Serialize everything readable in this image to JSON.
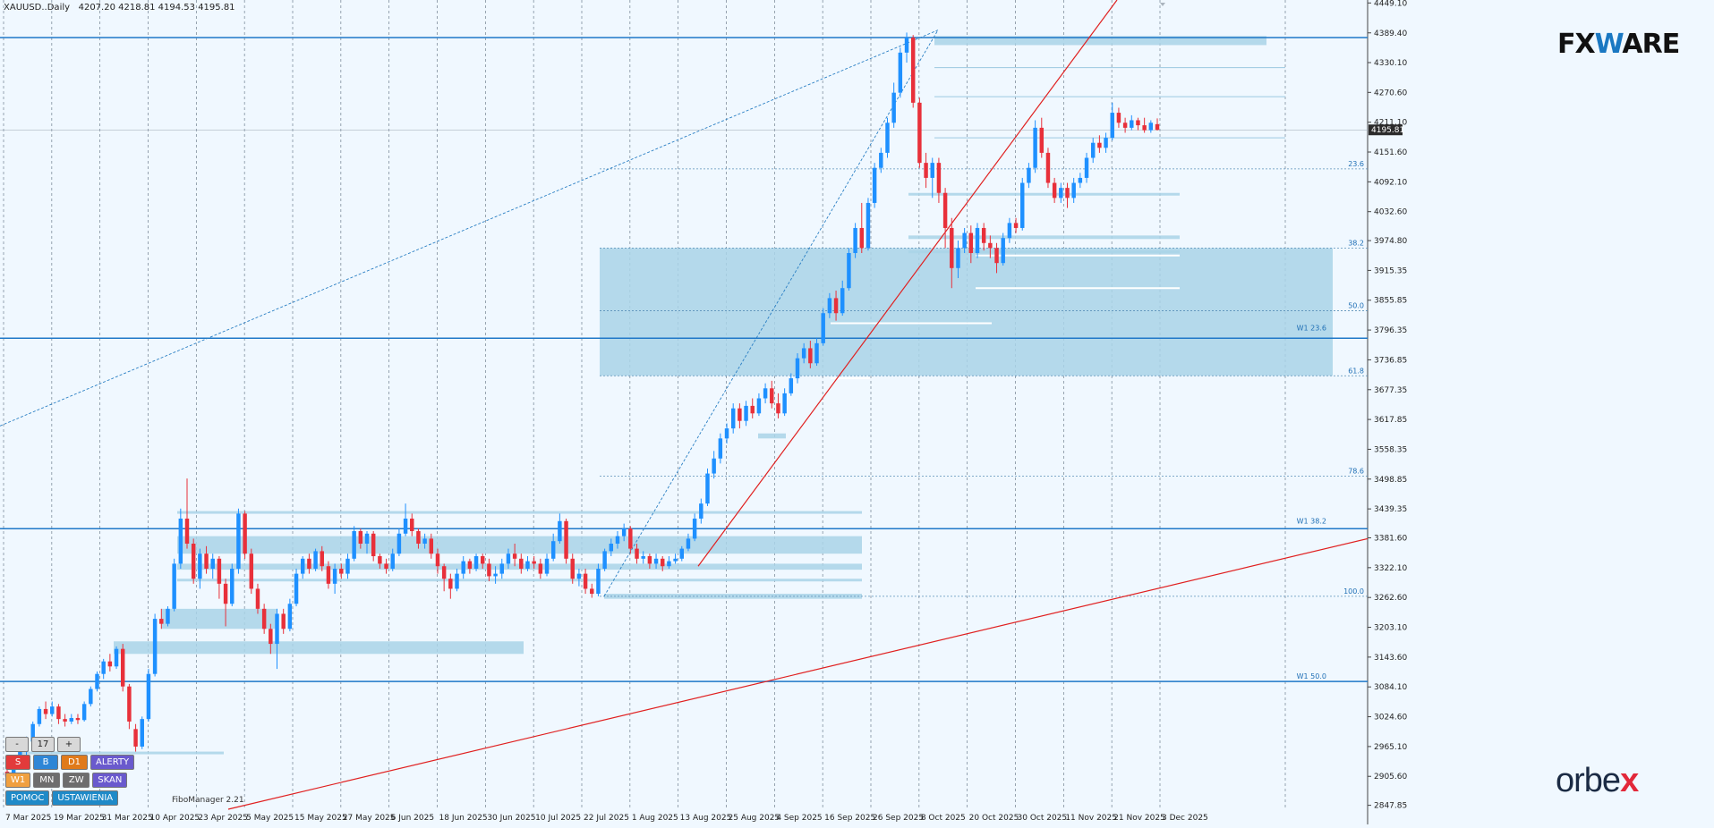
{
  "header": {
    "symbol": "XAUUSD..Daily",
    "ohlc": "4207.20 4218.81 4194.53 4195.81"
  },
  "brand": {
    "fxware_pre": "FX",
    "fxware_w": "W",
    "fxware_post": "ARE",
    "orbex_pre": "orbe",
    "orbex_x": "x"
  },
  "panel": {
    "minus": "-",
    "count": "17",
    "plus": "+",
    "s": "S",
    "b": "B",
    "d1": "D1",
    "alerty": "ALERTY",
    "w1": "W1",
    "mn": "MN",
    "zw": "ZW",
    "skan": "SKAN",
    "pomoc": "POMOC",
    "ustawienia": "USTAWIENIA",
    "fibomanager": "FiboManager 2.21"
  },
  "colors": {
    "background": "#f0f8ff",
    "bull": "#1e90ff",
    "bear": "#e8303a",
    "zone": "#a9d4e8",
    "level_line": "#1f78c8",
    "trend_line": "#e02020",
    "grid": "#6f7f8f"
  },
  "chart_data": {
    "type": "candlestick",
    "symbol": "XAUUSD",
    "timeframe": "Daily",
    "last_price": "4195.81",
    "y_ticks": [
      "4449.10",
      "4389.40",
      "4330.10",
      "4270.60",
      "4211.10",
      "4151.60",
      "4092.10",
      "4032.60",
      "3974.80",
      "3915.35",
      "3855.85",
      "3796.35",
      "3736.85",
      "3677.35",
      "3617.85",
      "3558.35",
      "3498.85",
      "3439.35",
      "3381.60",
      "3322.10",
      "3262.60",
      "3203.10",
      "3143.60",
      "3084.10",
      "3024.60",
      "2965.10",
      "2905.60",
      "2847.85"
    ],
    "x_ticks": [
      "7 Mar 2025",
      "19 Mar 2025",
      "31 Mar 2025",
      "10 Apr 2025",
      "23 Apr 2025",
      "5 May 2025",
      "15 May 2025",
      "27 May 2025",
      "6 Jun 2025",
      "18 Jun 2025",
      "30 Jun 2025",
      "10 Jul 2025",
      "22 Jul 2025",
      "1 Aug 2025",
      "13 Aug 2025",
      "25 Aug 2025",
      "4 Sep 2025",
      "16 Sep 2025",
      "26 Sep 2025",
      "8 Oct 2025",
      "20 Oct 2025",
      "30 Oct 2025",
      "11 Nov 2025",
      "21 Nov 2025",
      "3 Dec 2025"
    ],
    "ylim": [
      2840.0,
      4455.0
    ],
    "candles": [
      [
        2915,
        2905,
        2940,
        2890
      ],
      [
        2905,
        2925,
        2930,
        2895
      ],
      [
        2925,
        2955,
        2960,
        2920
      ],
      [
        2955,
        2975,
        2985,
        2948
      ],
      [
        2975,
        3010,
        3015,
        2970
      ],
      [
        3010,
        3040,
        3045,
        3005
      ],
      [
        3040,
        3030,
        3055,
        3020
      ],
      [
        3030,
        3045,
        3055,
        3025
      ],
      [
        3045,
        3020,
        3050,
        3010
      ],
      [
        3020,
        3015,
        3030,
        3005
      ],
      [
        3015,
        3022,
        3030,
        3010
      ],
      [
        3022,
        3018,
        3030,
        3010
      ],
      [
        3018,
        3050,
        3055,
        3015
      ],
      [
        3050,
        3080,
        3085,
        3045
      ],
      [
        3080,
        3110,
        3115,
        3075
      ],
      [
        3110,
        3135,
        3140,
        3100
      ],
      [
        3135,
        3125,
        3150,
        3115
      ],
      [
        3125,
        3160,
        3165,
        3120
      ],
      [
        3160,
        3085,
        3170,
        3075
      ],
      [
        3085,
        3015,
        3090,
        3000
      ],
      [
        3000,
        2965,
        3010,
        2955
      ],
      [
        2965,
        3020,
        3025,
        2960
      ],
      [
        3020,
        3110,
        3120,
        3015
      ],
      [
        3110,
        3220,
        3230,
        3105
      ],
      [
        3220,
        3210,
        3240,
        3200
      ],
      [
        3210,
        3240,
        3245,
        3205
      ],
      [
        3240,
        3330,
        3340,
        3235
      ],
      [
        3330,
        3420,
        3440,
        3320
      ],
      [
        3420,
        3370,
        3500,
        3360
      ],
      [
        3370,
        3300,
        3380,
        3290
      ],
      [
        3300,
        3350,
        3360,
        3280
      ],
      [
        3350,
        3320,
        3365,
        3310
      ],
      [
        3320,
        3340,
        3350,
        3300
      ],
      [
        3340,
        3290,
        3345,
        3260
      ],
      [
        3290,
        3250,
        3300,
        3205
      ],
      [
        3250,
        3320,
        3330,
        3245
      ],
      [
        3320,
        3430,
        3440,
        3310
      ],
      [
        3430,
        3350,
        3435,
        3340
      ],
      [
        3350,
        3280,
        3360,
        3270
      ],
      [
        3280,
        3240,
        3290,
        3230
      ],
      [
        3240,
        3200,
        3250,
        3190
      ],
      [
        3200,
        3170,
        3210,
        3150
      ],
      [
        3170,
        3230,
        3240,
        3120
      ],
      [
        3230,
        3200,
        3240,
        3190
      ],
      [
        3200,
        3250,
        3260,
        3195
      ],
      [
        3250,
        3310,
        3320,
        3245
      ],
      [
        3310,
        3340,
        3345,
        3300
      ],
      [
        3340,
        3320,
        3350,
        3310
      ],
      [
        3320,
        3355,
        3360,
        3315
      ],
      [
        3355,
        3325,
        3365,
        3315
      ],
      [
        3325,
        3290,
        3335,
        3280
      ],
      [
        3290,
        3320,
        3330,
        3270
      ],
      [
        3320,
        3310,
        3330,
        3300
      ],
      [
        3310,
        3340,
        3350,
        3300
      ],
      [
        3340,
        3395,
        3405,
        3335
      ],
      [
        3395,
        3370,
        3400,
        3360
      ],
      [
        3370,
        3390,
        3395,
        3350
      ],
      [
        3390,
        3345,
        3395,
        3335
      ],
      [
        3345,
        3330,
        3350,
        3320
      ],
      [
        3330,
        3320,
        3340,
        3310
      ],
      [
        3320,
        3350,
        3360,
        3315
      ],
      [
        3350,
        3390,
        3400,
        3345
      ],
      [
        3390,
        3420,
        3450,
        3385
      ],
      [
        3420,
        3395,
        3430,
        3385
      ],
      [
        3395,
        3370,
        3400,
        3360
      ],
      [
        3370,
        3380,
        3390,
        3360
      ],
      [
        3380,
        3350,
        3390,
        3340
      ],
      [
        3350,
        3325,
        3360,
        3310
      ],
      [
        3325,
        3300,
        3330,
        3275
      ],
      [
        3300,
        3280,
        3310,
        3260
      ],
      [
        3280,
        3310,
        3320,
        3275
      ],
      [
        3310,
        3335,
        3345,
        3300
      ],
      [
        3335,
        3320,
        3340,
        3310
      ],
      [
        3320,
        3345,
        3350,
        3315
      ],
      [
        3345,
        3330,
        3350,
        3320
      ],
      [
        3330,
        3305,
        3340,
        3295
      ],
      [
        3305,
        3310,
        3325,
        3290
      ],
      [
        3310,
        3330,
        3340,
        3300
      ],
      [
        3330,
        3350,
        3360,
        3320
      ],
      [
        3350,
        3340,
        3370,
        3325
      ],
      [
        3340,
        3320,
        3350,
        3310
      ],
      [
        3320,
        3335,
        3345,
        3315
      ],
      [
        3335,
        3330,
        3345,
        3320
      ],
      [
        3330,
        3310,
        3340,
        3300
      ],
      [
        3310,
        3340,
        3350,
        3305
      ],
      [
        3340,
        3375,
        3390,
        3335
      ],
      [
        3375,
        3415,
        3430,
        3370
      ],
      [
        3415,
        3340,
        3420,
        3330
      ],
      [
        3340,
        3300,
        3350,
        3290
      ],
      [
        3300,
        3310,
        3320,
        3285
      ],
      [
        3310,
        3280,
        3320,
        3270
      ],
      [
        3280,
        3270,
        3290,
        3262
      ],
      [
        3270,
        3320,
        3330,
        3265
      ],
      [
        3320,
        3355,
        3360,
        3315
      ],
      [
        3355,
        3370,
        3380,
        3345
      ],
      [
        3370,
        3385,
        3395,
        3360
      ],
      [
        3385,
        3400,
        3410,
        3375
      ],
      [
        3400,
        3360,
        3405,
        3350
      ],
      [
        3360,
        3340,
        3370,
        3330
      ],
      [
        3340,
        3345,
        3355,
        3330
      ],
      [
        3345,
        3330,
        3350,
        3320
      ],
      [
        3330,
        3340,
        3350,
        3320
      ],
      [
        3340,
        3325,
        3345,
        3315
      ],
      [
        3325,
        3335,
        3345,
        3320
      ],
      [
        3335,
        3340,
        3350,
        3330
      ],
      [
        3340,
        3360,
        3365,
        3335
      ],
      [
        3360,
        3380,
        3390,
        3355
      ],
      [
        3380,
        3420,
        3430,
        3375
      ],
      [
        3420,
        3450,
        3460,
        3410
      ],
      [
        3450,
        3510,
        3520,
        3445
      ],
      [
        3510,
        3540,
        3555,
        3500
      ],
      [
        3540,
        3580,
        3590,
        3530
      ],
      [
        3580,
        3600,
        3610,
        3570
      ],
      [
        3600,
        3640,
        3650,
        3590
      ],
      [
        3640,
        3615,
        3650,
        3600
      ],
      [
        3615,
        3645,
        3655,
        3605
      ],
      [
        3645,
        3630,
        3660,
        3620
      ],
      [
        3630,
        3660,
        3670,
        3625
      ],
      [
        3660,
        3680,
        3690,
        3650
      ],
      [
        3680,
        3650,
        3695,
        3640
      ],
      [
        3650,
        3630,
        3670,
        3620
      ],
      [
        3630,
        3670,
        3680,
        3625
      ],
      [
        3670,
        3700,
        3710,
        3665
      ],
      [
        3700,
        3740,
        3750,
        3690
      ],
      [
        3740,
        3760,
        3770,
        3730
      ],
      [
        3760,
        3730,
        3775,
        3720
      ],
      [
        3730,
        3770,
        3780,
        3725
      ],
      [
        3770,
        3830,
        3840,
        3765
      ],
      [
        3830,
        3860,
        3870,
        3820
      ],
      [
        3860,
        3830,
        3875,
        3815
      ],
      [
        3830,
        3880,
        3895,
        3825
      ],
      [
        3880,
        3950,
        3960,
        3875
      ],
      [
        3950,
        4000,
        4010,
        3940
      ],
      [
        4000,
        3960,
        4050,
        3950
      ],
      [
        3960,
        4050,
        4060,
        3955
      ],
      [
        4050,
        4120,
        4130,
        4040
      ],
      [
        4120,
        4150,
        4160,
        4110
      ],
      [
        4150,
        4210,
        4220,
        4140
      ],
      [
        4210,
        4270,
        4290,
        4200
      ],
      [
        4270,
        4350,
        4360,
        4260
      ],
      [
        4350,
        4380,
        4390,
        4330
      ],
      [
        4380,
        4250,
        4385,
        4240
      ],
      [
        4250,
        4130,
        4260,
        4120
      ],
      [
        4130,
        4100,
        4150,
        4080
      ],
      [
        4100,
        4130,
        4140,
        4060
      ],
      [
        4130,
        4070,
        4140,
        4050
      ],
      [
        4070,
        4000,
        4080,
        3960
      ],
      [
        4000,
        3920,
        4020,
        3880
      ],
      [
        3920,
        3960,
        3975,
        3900
      ],
      [
        3960,
        3990,
        4000,
        3950
      ],
      [
        3990,
        3950,
        4005,
        3930
      ],
      [
        3950,
        4000,
        4010,
        3940
      ],
      [
        4000,
        3970,
        4010,
        3955
      ],
      [
        3970,
        3960,
        3985,
        3940
      ],
      [
        3960,
        3930,
        3970,
        3910
      ],
      [
        3930,
        3980,
        3990,
        3925
      ],
      [
        3980,
        4010,
        4020,
        3970
      ],
      [
        4010,
        4000,
        4020,
        3990
      ],
      [
        4000,
        4090,
        4100,
        3995
      ],
      [
        4090,
        4120,
        4130,
        4080
      ],
      [
        4120,
        4200,
        4215,
        4110
      ],
      [
        4200,
        4150,
        4220,
        4140
      ],
      [
        4150,
        4090,
        4160,
        4080
      ],
      [
        4090,
        4060,
        4100,
        4050
      ],
      [
        4060,
        4080,
        4090,
        4050
      ],
      [
        4080,
        4060,
        4090,
        4040
      ],
      [
        4060,
        4090,
        4100,
        4050
      ],
      [
        4090,
        4100,
        4110,
        4080
      ],
      [
        4100,
        4140,
        4150,
        4090
      ],
      [
        4140,
        4170,
        4180,
        4130
      ],
      [
        4170,
        4160,
        4185,
        4150
      ],
      [
        4160,
        4180,
        4190,
        4150
      ],
      [
        4180,
        4230,
        4250,
        4175
      ],
      [
        4230,
        4210,
        4240,
        4200
      ],
      [
        4210,
        4200,
        4220,
        4190
      ],
      [
        4200,
        4215,
        4225,
        4195
      ],
      [
        4215,
        4205,
        4220,
        4195
      ],
      [
        4205,
        4195,
        4220,
        4190
      ],
      [
        4195,
        4210,
        4215,
        4190
      ],
      [
        4207.2,
        4195.81,
        4218.81,
        4194.53
      ]
    ],
    "horizontal_levels": [
      4380,
      3780,
      3400,
      3095
    ],
    "fib_levels": [
      {
        "label": "23.6",
        "value": 4118
      },
      {
        "label": "38.2",
        "value": 3960
      },
      {
        "label": "50.0",
        "value": 3835
      },
      {
        "label": "61.8",
        "value": 3705
      },
      {
        "label": "78.6",
        "value": 3505
      },
      {
        "label": "100.0",
        "value": 3265
      }
    ],
    "weekly_labels": [
      {
        "label": "W1 23.6",
        "value": 3790
      },
      {
        "label": "W1 38.2",
        "value": 3405
      },
      {
        "label": "W1 50.0",
        "value": 3095
      }
    ]
  }
}
